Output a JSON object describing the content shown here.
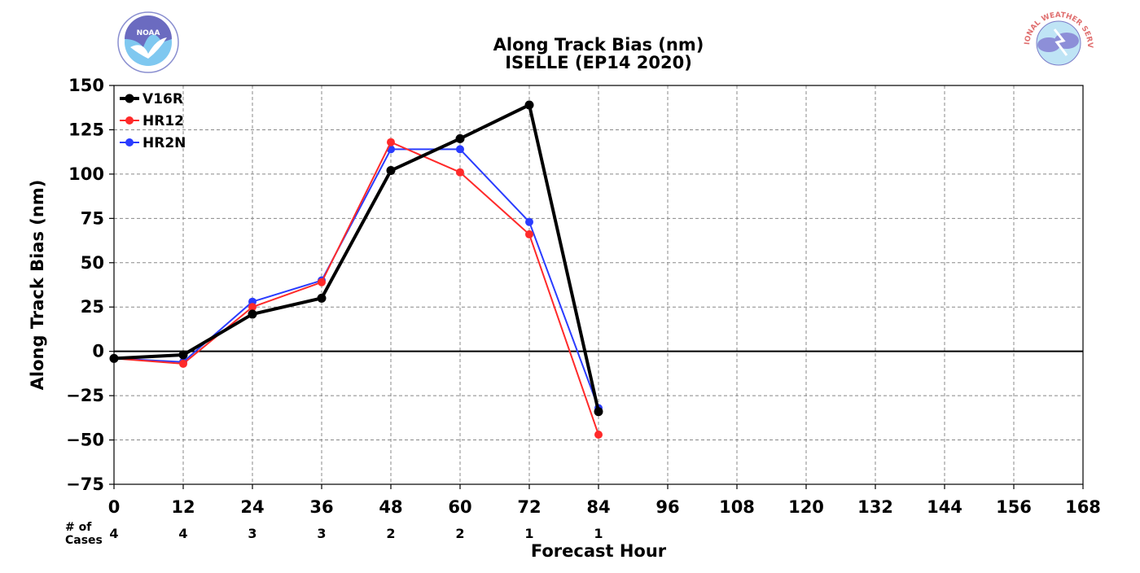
{
  "chart_data": {
    "type": "line",
    "title": "Along Track Bias (nm)",
    "subtitle": "ISELLE (EP14 2020)",
    "xlabel": "Forecast Hour",
    "ylabel": "Along Track Bias (nm)",
    "xlim": [
      0,
      168
    ],
    "ylim": [
      -75,
      150
    ],
    "x_ticks": [
      0,
      12,
      24,
      36,
      48,
      60,
      72,
      84,
      96,
      108,
      120,
      132,
      144,
      156,
      168
    ],
    "y_ticks": [
      -75,
      -50,
      -25,
      0,
      25,
      50,
      75,
      100,
      125,
      150
    ],
    "grid": true,
    "legend_position": "top-left",
    "cases_label": "# of\nCases",
    "cases_x": [
      0,
      12,
      24,
      36,
      48,
      60,
      72,
      84
    ],
    "cases": [
      4,
      4,
      3,
      3,
      2,
      2,
      1,
      1
    ],
    "series": [
      {
        "name": "V16R",
        "color": "#000000",
        "x": [
          0,
          12,
          24,
          36,
          48,
          60,
          72,
          84
        ],
        "values": [
          -4,
          -2,
          21,
          30,
          102,
          120,
          139,
          -34
        ]
      },
      {
        "name": "HR12",
        "color": "#ff2a2a",
        "x": [
          0,
          12,
          24,
          36,
          48,
          60,
          72,
          84
        ],
        "values": [
          -4,
          -7,
          25,
          39,
          118,
          101,
          66,
          -47
        ]
      },
      {
        "name": "HR2N",
        "color": "#2a3cff",
        "x": [
          0,
          12,
          24,
          36,
          48,
          60,
          72,
          84
        ],
        "values": [
          -4,
          -6,
          28,
          40,
          114,
          114,
          73,
          -32
        ]
      }
    ]
  },
  "logos": {
    "left": {
      "icon": "noaa-logo",
      "text": "NOAA"
    },
    "right": {
      "icon": "nws-logo",
      "text": "NATIONAL WEATHER SERVICE"
    }
  }
}
